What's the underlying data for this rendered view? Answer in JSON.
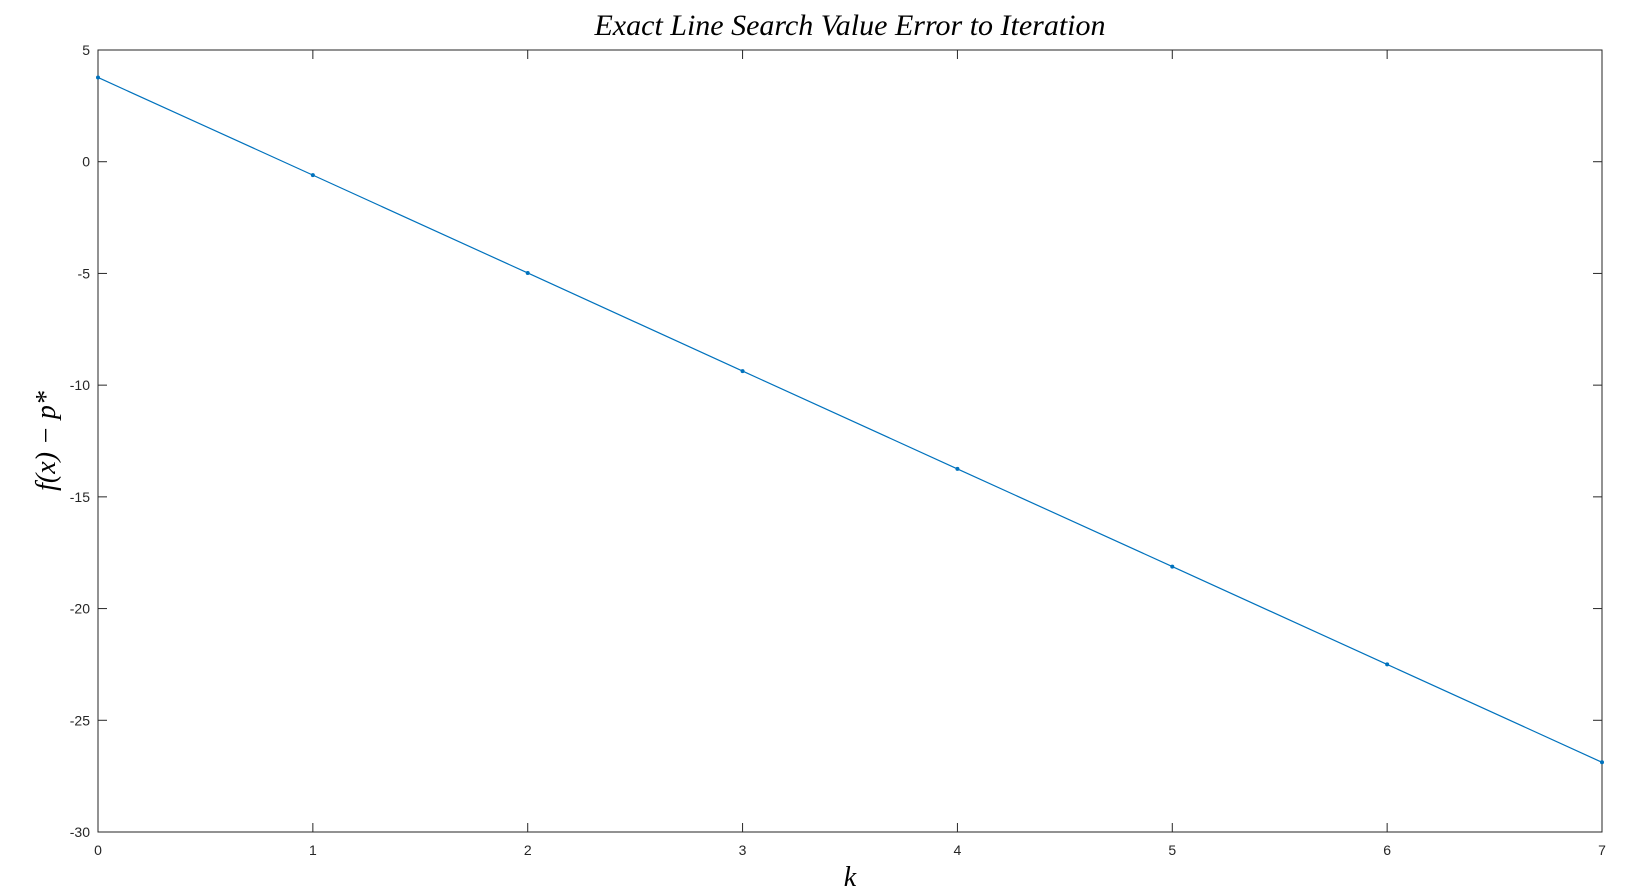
{
  "chart_data": {
    "type": "line",
    "title": "Exact Line Search Value Error to Iteration",
    "xlabel": "k",
    "ylabel": "f(x) − p*",
    "xlim": [
      0,
      7
    ],
    "ylim": [
      -30,
      5
    ],
    "xticks": [
      0,
      1,
      2,
      3,
      4,
      5,
      6,
      7
    ],
    "yticks": [
      5,
      0,
      -5,
      -10,
      -15,
      -20,
      -25,
      -30
    ],
    "grid": false,
    "series": [
      {
        "color": "#0072BD",
        "x": [
          0,
          1,
          2,
          3,
          4,
          5,
          6,
          7
        ],
        "y": [
          3.77,
          -0.6,
          -4.98,
          -9.37,
          -13.75,
          -18.12,
          -22.5,
          -26.88
        ]
      }
    ]
  }
}
